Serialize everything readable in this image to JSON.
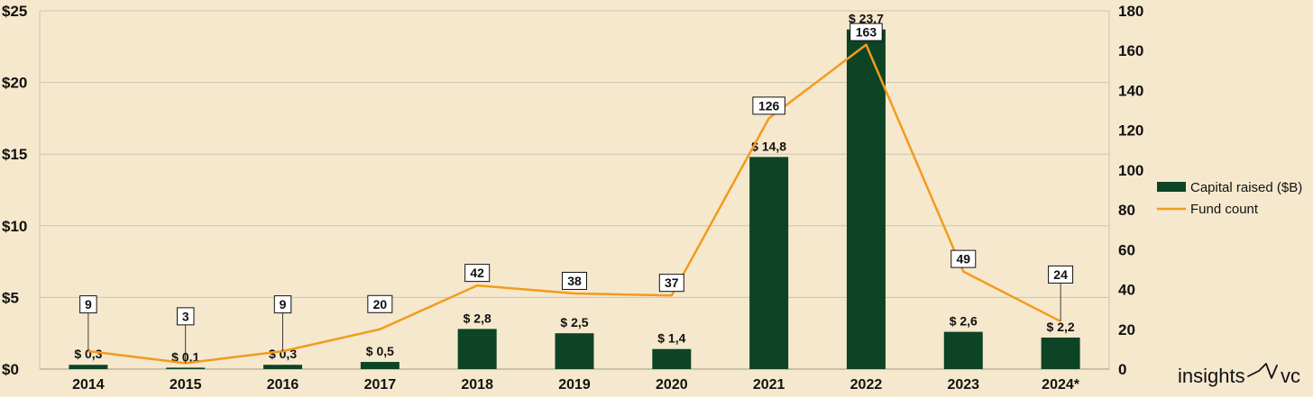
{
  "chart_data": {
    "type": "bar",
    "categories": [
      "2014",
      "2015",
      "2016",
      "2017",
      "2018",
      "2019",
      "2020",
      "2021",
      "2022",
      "2023",
      "2024*"
    ],
    "series": [
      {
        "name": "Capital raised ($B)",
        "type": "bar",
        "axis": "left",
        "color": "#0c4425",
        "values": [
          0.3,
          0.1,
          0.3,
          0.5,
          2.8,
          2.5,
          1.4,
          14.8,
          23.7,
          2.6,
          2.2
        ],
        "labels": [
          "$ 0,3",
          "$ 0,1",
          "$ 0,3",
          "$ 0,5",
          "$ 2,8",
          "$ 2,5",
          "$ 1,4",
          "$ 14,8",
          "$ 23,7",
          "$ 2,6",
          "$ 2,2"
        ]
      },
      {
        "name": "Fund count",
        "type": "line",
        "axis": "right",
        "color": "#f29b1e",
        "values": [
          9,
          3,
          9,
          20,
          42,
          38,
          37,
          126,
          163,
          49,
          24
        ]
      }
    ],
    "left_axis": {
      "ylim": [
        0,
        25
      ],
      "ticks": [
        0,
        5,
        10,
        15,
        20,
        25
      ],
      "tick_labels": [
        "$0",
        "$5",
        "$10",
        "$15",
        "$20",
        "$25"
      ]
    },
    "right_axis": {
      "ylim": [
        0,
        180
      ],
      "ticks": [
        0,
        20,
        40,
        60,
        80,
        100,
        120,
        140,
        160,
        180
      ],
      "tick_labels": [
        "0",
        "20",
        "40",
        "60",
        "80",
        "100",
        "120",
        "140",
        "160",
        "180"
      ]
    },
    "grid": true,
    "legend": "right"
  },
  "brand": {
    "left": "insights",
    "right": "vc"
  }
}
